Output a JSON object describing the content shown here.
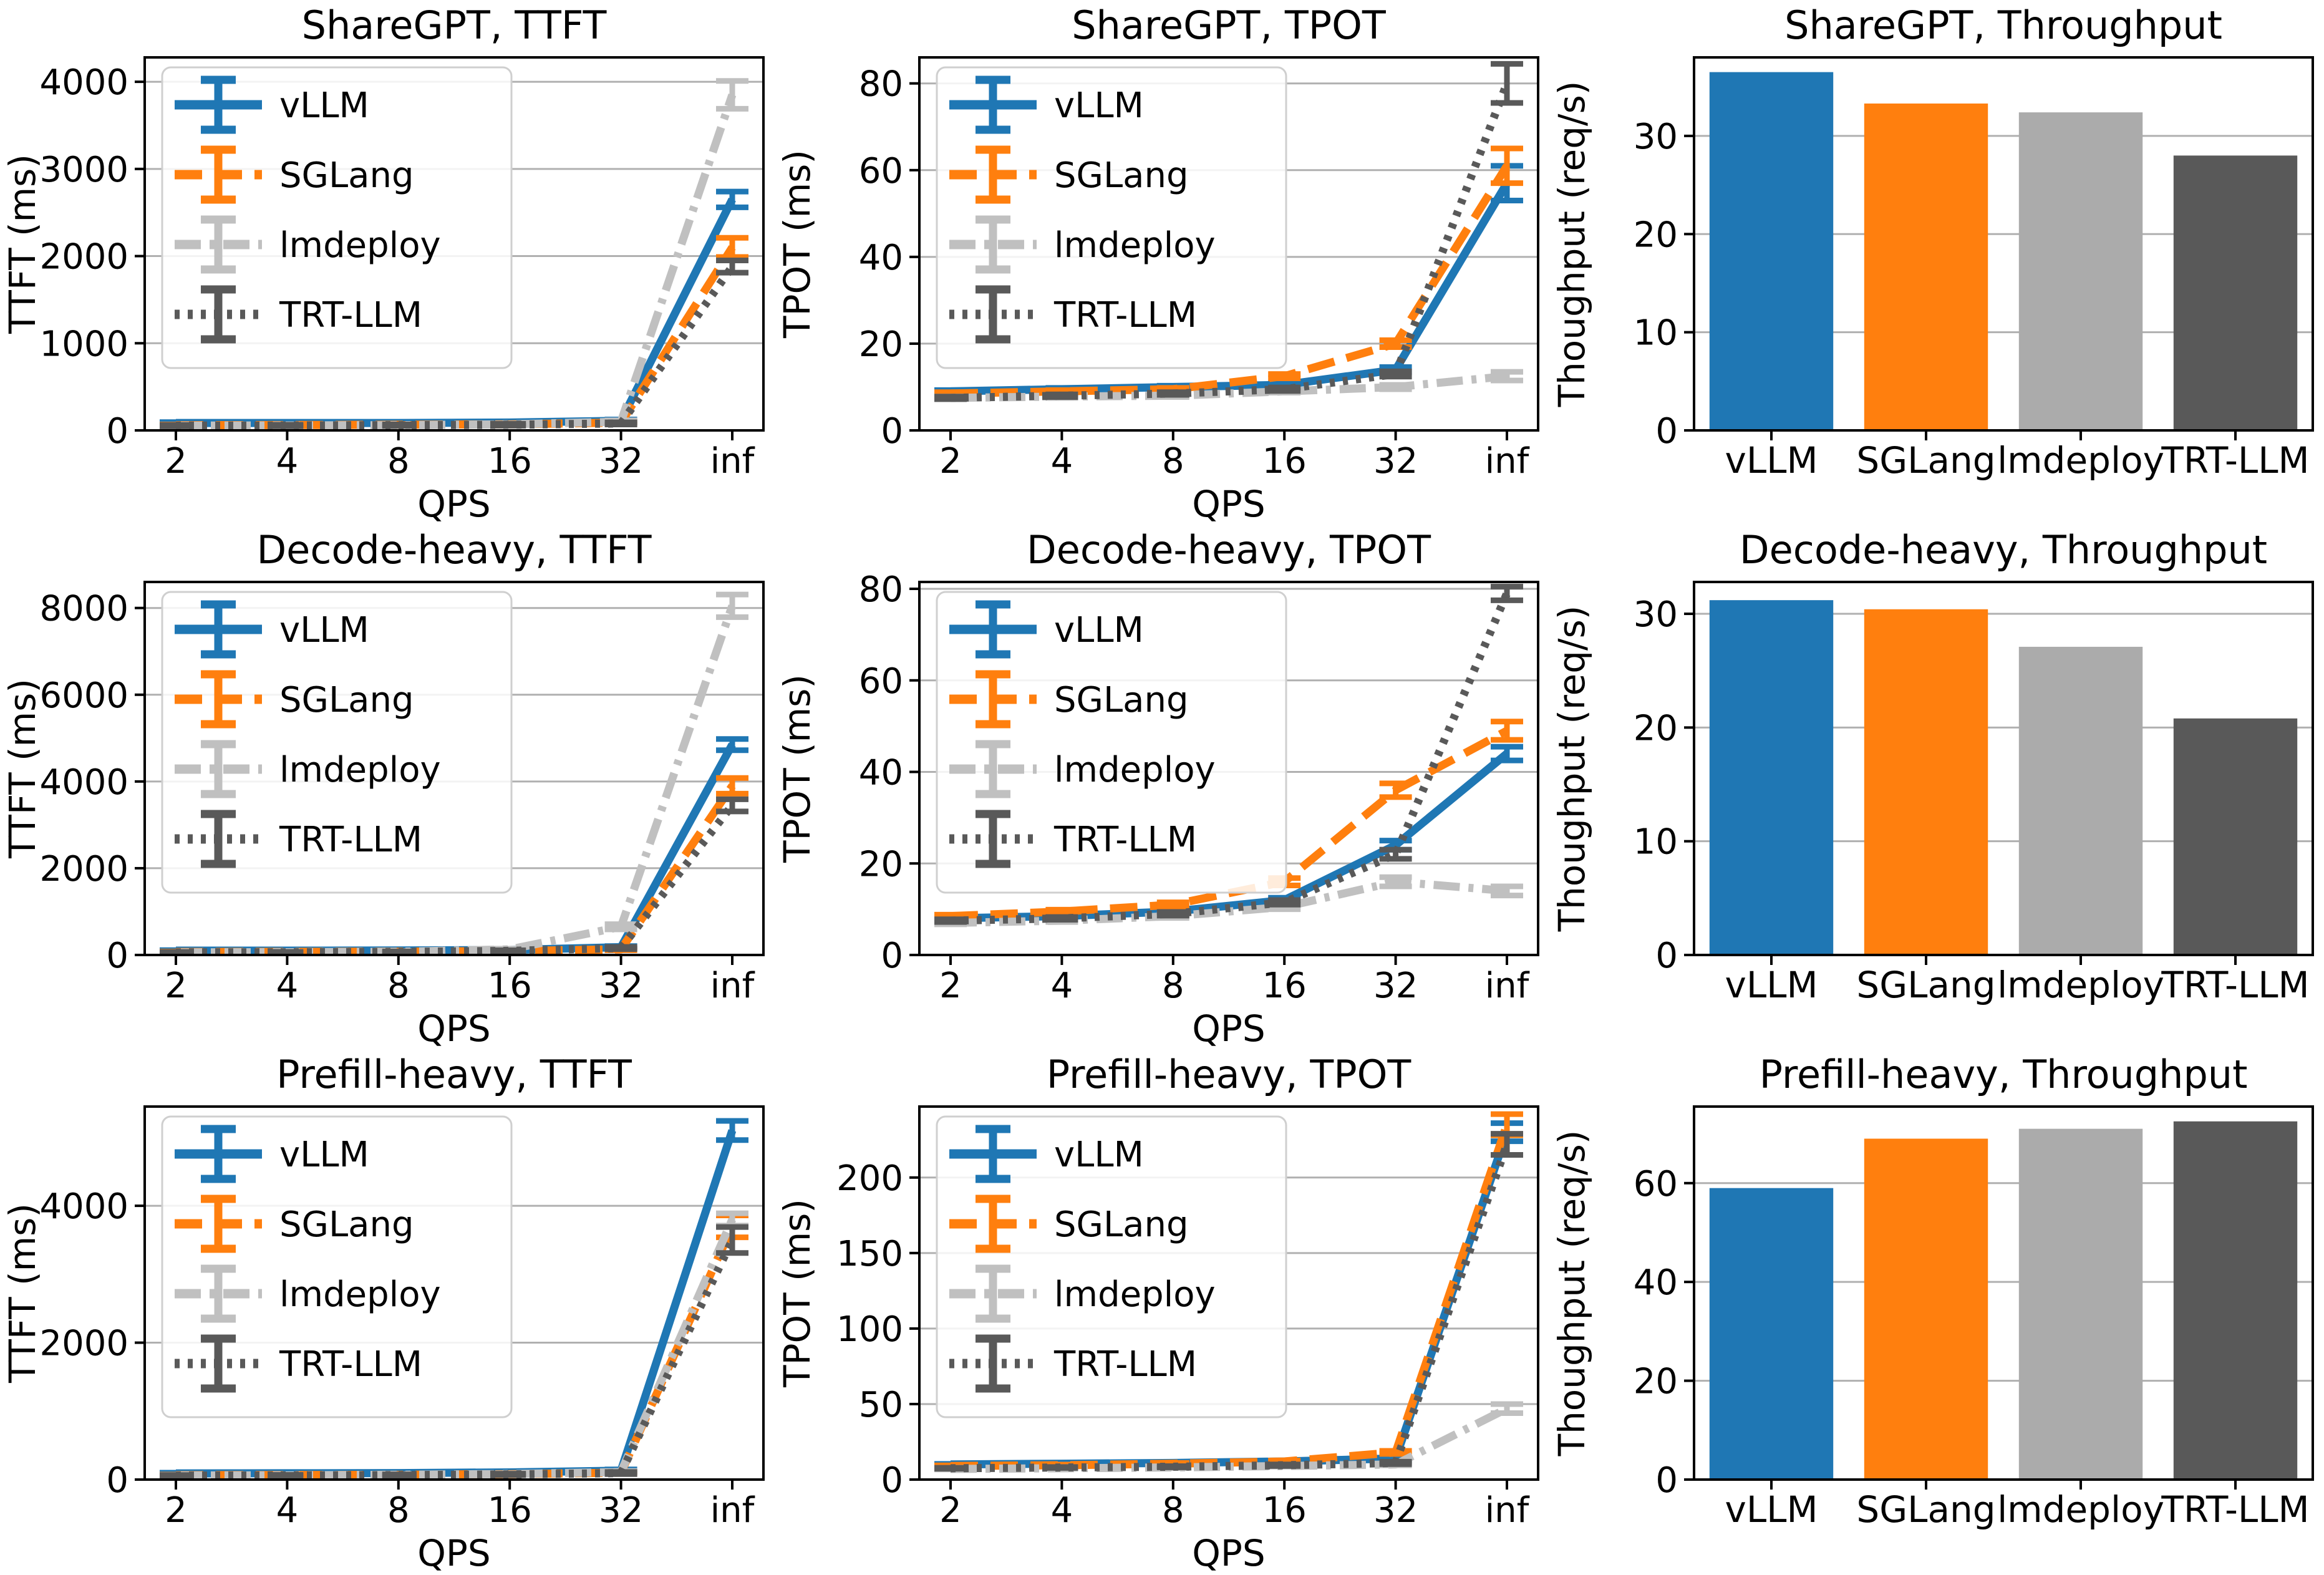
{
  "series_styles": [
    {
      "name": "vLLM",
      "color": "#1f77b4",
      "dash": "solid",
      "bar_color": "#1f77b4"
    },
    {
      "name": "SGLang",
      "color": "#ff7f0e",
      "dash": "dashed",
      "bar_color": "#ff7f0e"
    },
    {
      "name": "lmdeploy",
      "color": "#c0c0c0",
      "dash": "dashdot",
      "bar_color": "#ababab"
    },
    {
      "name": "TRT-LLM",
      "color": "#595959",
      "dash": "dotted",
      "bar_color": "#595959"
    }
  ],
  "grid_color": "#b0b0b0",
  "chart_data": [
    {
      "type": "line",
      "title": "ShareGPT, TTFT",
      "xlabel": "QPS",
      "ylabel": "TTFT (ms)",
      "x": [
        "2",
        "4",
        "8",
        "16",
        "32",
        "inf"
      ],
      "yticks": [
        0,
        1000,
        2000,
        3000,
        4000
      ],
      "ymax": 4280,
      "legend": true,
      "series": [
        {
          "name": "vLLM",
          "values": [
            85,
            85,
            85,
            90,
            110,
            2650
          ],
          "err": [
            10,
            10,
            10,
            10,
            15,
            90
          ]
        },
        {
          "name": "SGLang",
          "values": [
            60,
            62,
            65,
            70,
            90,
            2100
          ],
          "err": [
            8,
            8,
            8,
            10,
            15,
            110
          ]
        },
        {
          "name": "lmdeploy",
          "values": [
            55,
            57,
            60,
            70,
            100,
            3850
          ],
          "err": [
            8,
            8,
            8,
            10,
            15,
            160
          ]
        },
        {
          "name": "TRT-LLM",
          "values": [
            55,
            56,
            60,
            65,
            80,
            1880
          ],
          "err": [
            8,
            8,
            8,
            10,
            12,
            70
          ]
        }
      ]
    },
    {
      "type": "line",
      "title": "ShareGPT, TPOT",
      "xlabel": "QPS",
      "ylabel": "TPOT (ms)",
      "x": [
        "2",
        "4",
        "8",
        "16",
        "32",
        "inf"
      ],
      "yticks": [
        0,
        20,
        40,
        60,
        80
      ],
      "ymax": 86,
      "legend": true,
      "series": [
        {
          "name": "vLLM",
          "values": [
            9,
            9.5,
            10,
            10.5,
            14,
            57
          ],
          "err": [
            0.3,
            0.3,
            0.3,
            0.4,
            0.6,
            4
          ]
        },
        {
          "name": "SGLang",
          "values": [
            8.5,
            9,
            9.5,
            12.5,
            20,
            61
          ],
          "err": [
            0.3,
            0.3,
            0.3,
            0.5,
            0.8,
            4
          ]
        },
        {
          "name": "lmdeploy",
          "values": [
            7.5,
            7.8,
            8,
            9,
            10,
            12.5
          ],
          "err": [
            0.3,
            0.3,
            0.3,
            0.3,
            0.5,
            1
          ]
        },
        {
          "name": "TRT-LLM",
          "values": [
            7.5,
            8,
            8.5,
            9.5,
            13,
            80
          ],
          "err": [
            0.3,
            0.3,
            0.3,
            0.4,
            0.6,
            4.5
          ]
        }
      ]
    },
    {
      "type": "bar",
      "title": "ShareGPT, Throughput",
      "ylabel": "Thoughput (req/s)",
      "categories": [
        "vLLM",
        "SGLang",
        "lmdeploy",
        "TRT-LLM"
      ],
      "values": [
        36.5,
        33.3,
        32.4,
        28.0
      ],
      "yticks": [
        0,
        10,
        20,
        30
      ],
      "ymax": 38
    },
    {
      "type": "line",
      "title": "Decode-heavy, TTFT",
      "xlabel": "QPS",
      "ylabel": "TTFT (ms)",
      "x": [
        "2",
        "4",
        "8",
        "16",
        "32",
        "inf"
      ],
      "yticks": [
        0,
        2000,
        4000,
        6000,
        8000
      ],
      "ymax": 8600,
      "legend": true,
      "series": [
        {
          "name": "vLLM",
          "values": [
            100,
            100,
            105,
            115,
            180,
            4850
          ],
          "err": [
            12,
            12,
            12,
            15,
            25,
            130
          ]
        },
        {
          "name": "SGLang",
          "values": [
            70,
            72,
            78,
            90,
            130,
            3900
          ],
          "err": [
            10,
            10,
            10,
            12,
            20,
            180
          ]
        },
        {
          "name": "lmdeploy",
          "values": [
            60,
            65,
            75,
            130,
            650,
            8050
          ],
          "err": [
            10,
            10,
            10,
            15,
            60,
            260
          ]
        },
        {
          "name": "TRT-LLM",
          "values": [
            60,
            62,
            70,
            95,
            160,
            3450
          ],
          "err": [
            10,
            10,
            10,
            12,
            25,
            140
          ]
        }
      ]
    },
    {
      "type": "line",
      "title": "Decode-heavy, TPOT",
      "xlabel": "QPS",
      "ylabel": "TPOT (ms)",
      "x": [
        "2",
        "4",
        "8",
        "16",
        "32",
        "inf"
      ],
      "yticks": [
        0,
        20,
        40,
        60,
        80
      ],
      "ymax": 81.5,
      "legend": true,
      "series": [
        {
          "name": "vLLM",
          "values": [
            8,
            8.5,
            9.5,
            12,
            24,
            44
          ],
          "err": [
            0.3,
            0.3,
            0.4,
            0.5,
            1,
            1.5
          ]
        },
        {
          "name": "SGLang",
          "values": [
            8.5,
            9.5,
            11,
            16,
            36,
            49
          ],
          "err": [
            0.3,
            0.4,
            0.5,
            0.8,
            1.5,
            2
          ]
        },
        {
          "name": "lmdeploy",
          "values": [
            7,
            7.5,
            8.5,
            10.5,
            16,
            14
          ],
          "err": [
            0.3,
            0.3,
            0.4,
            0.5,
            1,
            1
          ]
        },
        {
          "name": "TRT-LLM",
          "values": [
            7.5,
            8,
            9,
            11.5,
            22,
            79
          ],
          "err": [
            0.3,
            0.3,
            0.4,
            0.5,
            1,
            1.5
          ]
        }
      ]
    },
    {
      "type": "bar",
      "title": "Decode-heavy, Throughput",
      "ylabel": "Thoughput (req/s)",
      "categories": [
        "vLLM",
        "SGLang",
        "lmdeploy",
        "TRT-LLM"
      ],
      "values": [
        31.2,
        30.4,
        27.1,
        20.8
      ],
      "yticks": [
        0,
        10,
        20,
        30
      ],
      "ymax": 32.8
    },
    {
      "type": "line",
      "title": "Prefill-heavy, TTFT",
      "xlabel": "QPS",
      "ylabel": "TTFT (ms)",
      "x": [
        "2",
        "4",
        "8",
        "16",
        "32",
        "inf"
      ],
      "yticks": [
        0,
        2000,
        4000
      ],
      "ymax": 5450,
      "legend": true,
      "series": [
        {
          "name": "vLLM",
          "values": [
            90,
            92,
            95,
            105,
            130,
            5100
          ],
          "err": [
            10,
            10,
            10,
            12,
            18,
            140
          ]
        },
        {
          "name": "SGLang",
          "values": [
            65,
            66,
            70,
            80,
            100,
            3700
          ],
          "err": [
            8,
            8,
            10,
            10,
            15,
            160
          ]
        },
        {
          "name": "lmdeploy",
          "values": [
            60,
            62,
            70,
            82,
            110,
            3800
          ],
          "err": [
            8,
            8,
            10,
            10,
            15,
            90
          ]
        },
        {
          "name": "TRT-LLM",
          "values": [
            58,
            60,
            65,
            75,
            95,
            3500
          ],
          "err": [
            8,
            8,
            10,
            10,
            15,
            190
          ]
        }
      ]
    },
    {
      "type": "line",
      "title": "Prefill-heavy, TPOT",
      "xlabel": "QPS",
      "ylabel": "TPOT (ms)",
      "x": [
        "2",
        "4",
        "8",
        "16",
        "32",
        "inf"
      ],
      "yticks": [
        0,
        50,
        100,
        150,
        200
      ],
      "ymax": 247,
      "legend": true,
      "series": [
        {
          "name": "vLLM",
          "values": [
            10,
            10.5,
            11,
            12,
            14,
            230
          ],
          "err": [
            0.4,
            0.4,
            0.4,
            0.5,
            0.8,
            6
          ]
        },
        {
          "name": "SGLang",
          "values": [
            9,
            9.5,
            10.5,
            12,
            18,
            235
          ],
          "err": [
            0.4,
            0.4,
            0.5,
            0.6,
            1,
            7
          ]
        },
        {
          "name": "lmdeploy",
          "values": [
            7,
            7.5,
            8,
            9,
            10,
            47
          ],
          "err": [
            0.3,
            0.3,
            0.4,
            0.4,
            0.6,
            3
          ]
        },
        {
          "name": "TRT-LLM",
          "values": [
            7.5,
            8,
            8.5,
            9.5,
            11,
            222
          ],
          "err": [
            0.3,
            0.3,
            0.4,
            0.5,
            0.8,
            7
          ]
        }
      ]
    },
    {
      "type": "bar",
      "title": "Prefill-heavy, Throughput",
      "ylabel": "Thoughput (req/s)",
      "categories": [
        "vLLM",
        "SGLang",
        "lmdeploy",
        "TRT-LLM"
      ],
      "values": [
        59,
        69,
        71,
        72.5
      ],
      "yticks": [
        0,
        20,
        40,
        60
      ],
      "ymax": 75.5
    }
  ]
}
